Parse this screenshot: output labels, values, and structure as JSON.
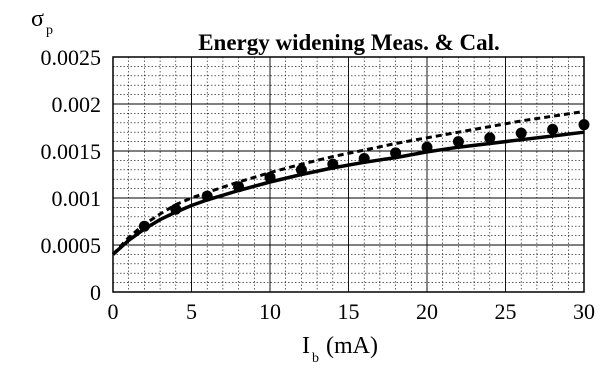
{
  "chart_data": {
    "type": "line",
    "title": "Energy widening Meas. & Cal.",
    "ylabel": {
      "symbol": "σ",
      "subscript": "p"
    },
    "xlabel": {
      "symbol": "I",
      "subscript": "b",
      "unit": "(mA)"
    },
    "xlim": [
      0,
      30
    ],
    "ylim": [
      0,
      0.0025
    ],
    "x_ticks": [
      0,
      5,
      10,
      15,
      20,
      25,
      30
    ],
    "x_tick_labels": [
      "0",
      "5",
      "10",
      "15",
      "20",
      "25",
      "30"
    ],
    "y_ticks": [
      0,
      0.0005,
      0.001,
      0.0015,
      0.002,
      0.0025
    ],
    "y_tick_labels": [
      "0",
      "0.0005",
      "0.001",
      "0.0015",
      "0.002",
      "0.0025"
    ],
    "grid": true,
    "series": [
      {
        "style": "solid",
        "x": [
          0,
          1,
          2,
          3,
          4,
          5,
          6,
          8,
          10,
          12,
          14,
          16,
          18,
          20,
          22,
          24,
          26,
          28,
          30
        ],
        "y": [
          0.0004,
          0.00055,
          0.00067,
          0.00077,
          0.00085,
          0.00092,
          0.00098,
          0.00108,
          0.00117,
          0.00125,
          0.00132,
          0.00138,
          0.00143,
          0.00149,
          0.00154,
          0.00158,
          0.00162,
          0.00166,
          0.0017
        ]
      },
      {
        "style": "dashed",
        "x": [
          0,
          1,
          2,
          3,
          4,
          5,
          6,
          8,
          10,
          12,
          14,
          16,
          18,
          20,
          22,
          24,
          26,
          28,
          30
        ],
        "y": [
          0.0004,
          0.00058,
          0.00072,
          0.00083,
          0.00093,
          0.001,
          0.00106,
          0.00117,
          0.00127,
          0.00136,
          0.00144,
          0.00151,
          0.00158,
          0.00164,
          0.0017,
          0.00176,
          0.00182,
          0.00187,
          0.00192
        ]
      },
      {
        "style": "markers",
        "x": [
          2,
          4,
          6,
          8,
          10,
          12,
          14,
          16,
          18,
          20,
          22,
          24,
          26,
          28,
          30
        ],
        "y": [
          0.0007,
          0.00088,
          0.00102,
          0.00112,
          0.00122,
          0.0013,
          0.00136,
          0.00142,
          0.00148,
          0.00154,
          0.0016,
          0.00164,
          0.00169,
          0.00173,
          0.00178
        ]
      }
    ]
  }
}
